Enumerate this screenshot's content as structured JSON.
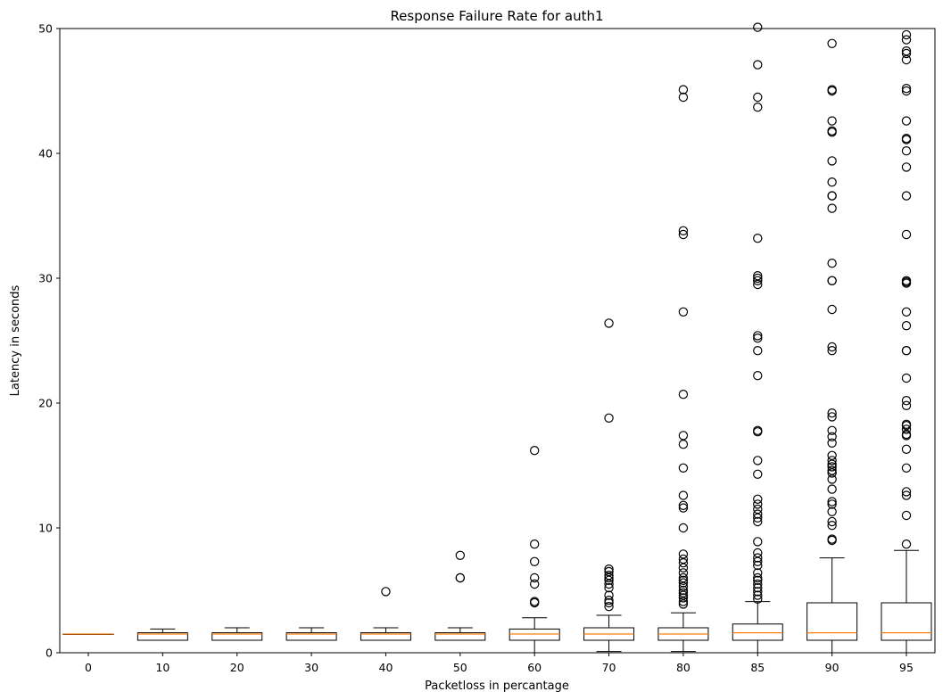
{
  "chart_data": {
    "type": "box",
    "title": "Response Failure Rate for auth1",
    "xlabel": "Packetloss in percantage",
    "ylabel": "Latency in seconds",
    "ylim": [
      0,
      50
    ],
    "yticks": [
      0,
      10,
      20,
      30,
      40,
      50
    ],
    "grid": false,
    "categories": [
      "0",
      "10",
      "20",
      "30",
      "40",
      "50",
      "60",
      "70",
      "80",
      "85",
      "90",
      "95"
    ],
    "boxes": [
      {
        "category": "0",
        "whisker_low": 1.5,
        "q1": 1.5,
        "median": 1.5,
        "q3": 1.5,
        "whisker_high": 1.5,
        "fliers": []
      },
      {
        "category": "10",
        "whisker_low": 1.0,
        "q1": 1.0,
        "median": 1.5,
        "q3": 1.6,
        "whisker_high": 1.9,
        "fliers": []
      },
      {
        "category": "20",
        "whisker_low": 1.0,
        "q1": 1.0,
        "median": 1.5,
        "q3": 1.6,
        "whisker_high": 2.0,
        "fliers": []
      },
      {
        "category": "30",
        "whisker_low": 1.0,
        "q1": 1.0,
        "median": 1.5,
        "q3": 1.6,
        "whisker_high": 2.0,
        "fliers": []
      },
      {
        "category": "40",
        "whisker_low": 1.0,
        "q1": 1.0,
        "median": 1.5,
        "q3": 1.6,
        "whisker_high": 2.0,
        "fliers": [
          4.9
        ]
      },
      {
        "category": "50",
        "whisker_low": 1.0,
        "q1": 1.0,
        "median": 1.5,
        "q3": 1.6,
        "whisker_high": 2.0,
        "fliers": [
          6.0,
          6.0,
          7.8
        ]
      },
      {
        "category": "60",
        "whisker_low": 0.0,
        "q1": 1.0,
        "median": 1.5,
        "q3": 1.9,
        "whisker_high": 2.8,
        "fliers": [
          4.0,
          4.1,
          5.5,
          6.0,
          7.3,
          8.7,
          16.2
        ]
      },
      {
        "category": "70",
        "whisker_low": 0.1,
        "q1": 1.0,
        "median": 1.5,
        "q3": 2.0,
        "whisker_high": 3.0,
        "fliers": [
          3.7,
          4.0,
          4.2,
          4.6,
          5.2,
          5.5,
          5.8,
          6.0,
          6.2,
          6.5,
          6.7,
          18.8,
          26.4
        ]
      },
      {
        "category": "80",
        "whisker_low": 0.1,
        "q1": 1.0,
        "median": 1.5,
        "q3": 2.0,
        "whisker_high": 3.2,
        "fliers": [
          3.9,
          4.1,
          4.4,
          4.6,
          4.8,
          5.0,
          5.3,
          5.6,
          5.8,
          6.0,
          6.4,
          6.8,
          7.2,
          7.5,
          7.9,
          10.0,
          11.6,
          11.8,
          12.6,
          14.8,
          16.7,
          17.4,
          20.7,
          27.3,
          33.5,
          33.8,
          44.5,
          45.1
        ]
      },
      {
        "category": "85",
        "whisker_low": 0.0,
        "q1": 1.0,
        "median": 1.6,
        "q3": 2.3,
        "whisker_high": 4.1,
        "fliers": [
          4.3,
          4.6,
          4.9,
          5.2,
          5.5,
          5.8,
          6.0,
          6.4,
          7.0,
          7.3,
          7.6,
          8.0,
          8.9,
          10.5,
          10.8,
          11.1,
          11.5,
          11.9,
          12.3,
          14.3,
          15.4,
          17.7,
          17.8,
          22.2,
          24.2,
          25.2,
          25.4,
          29.5,
          29.8,
          30.0,
          30.2,
          33.2,
          43.7,
          44.5,
          47.1,
          50.1
        ]
      },
      {
        "category": "90",
        "whisker_low": 0.0,
        "q1": 1.0,
        "median": 1.6,
        "q3": 4.0,
        "whisker_high": 7.6,
        "fliers": [
          9.0,
          9.1,
          10.2,
          10.5,
          11.3,
          11.9,
          12.1,
          13.1,
          13.9,
          14.4,
          14.6,
          14.9,
          15.1,
          15.4,
          15.8,
          16.8,
          17.3,
          17.8,
          18.9,
          19.2,
          24.2,
          24.5,
          27.5,
          29.8,
          29.8,
          31.2,
          35.6,
          36.6,
          36.6,
          37.7,
          39.4,
          41.7,
          41.8,
          42.6,
          45.0,
          45.1,
          48.8
        ]
      },
      {
        "category": "95",
        "whisker_low": 0.0,
        "q1": 1.0,
        "median": 1.6,
        "q3": 4.0,
        "whisker_high": 8.2,
        "fliers": [
          8.7,
          11.0,
          12.6,
          12.9,
          14.8,
          16.3,
          17.4,
          17.5,
          17.9,
          18.2,
          18.3,
          19.8,
          20.2,
          22.0,
          24.2,
          24.2,
          26.2,
          27.3,
          29.6,
          29.7,
          29.8,
          33.5,
          36.6,
          38.9,
          40.2,
          41.1,
          41.2,
          42.6,
          45.0,
          45.2,
          47.5,
          48.0,
          48.2,
          49.1,
          49.5
        ]
      }
    ]
  },
  "colors": {
    "box": "#000000",
    "median": "#ff7f0e",
    "background": "#ffffff"
  }
}
